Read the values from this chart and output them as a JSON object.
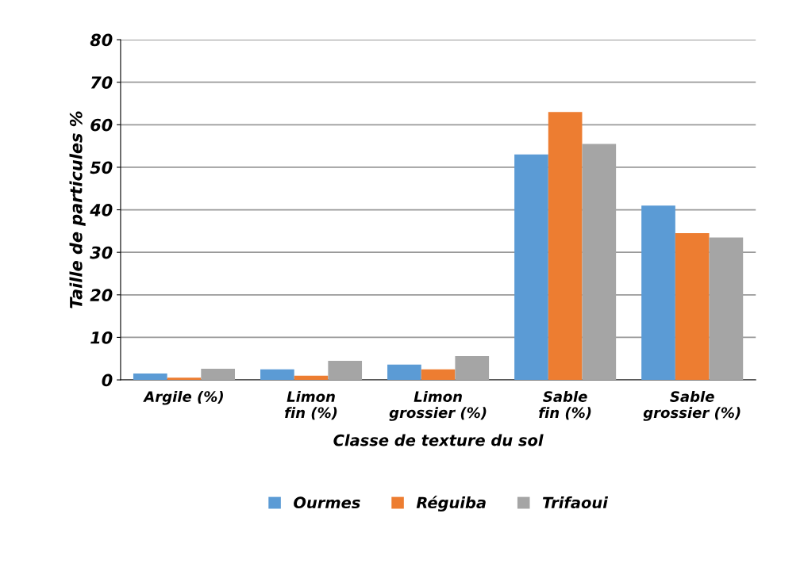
{
  "chart_data": {
    "type": "bar",
    "xlabel": "Classe de texture du sol",
    "ylabel": "Taille de particules %",
    "categories": [
      "Argile (%)",
      "Limon\nfin (%)",
      "Limon\ngrossier (%)",
      "Sable\nfin (%)",
      "Sable\ngrossier (%)"
    ],
    "series": [
      {
        "name": "Ourmes",
        "color": "#5b9bd5",
        "values": [
          1.5,
          2.5,
          3.6,
          53,
          41
        ]
      },
      {
        "name": "Réguiba",
        "color": "#ed7d31",
        "values": [
          0.5,
          1,
          2.5,
          63,
          34.5
        ]
      },
      {
        "name": "Trifaoui",
        "color": "#a5a5a5",
        "values": [
          2.6,
          4.5,
          5.6,
          55.5,
          33.5
        ]
      }
    ],
    "ylim": [
      0,
      80
    ],
    "yticks": [
      0,
      10,
      20,
      30,
      40,
      50,
      60,
      70,
      80
    ],
    "grid": "y",
    "legend": "bottom"
  }
}
